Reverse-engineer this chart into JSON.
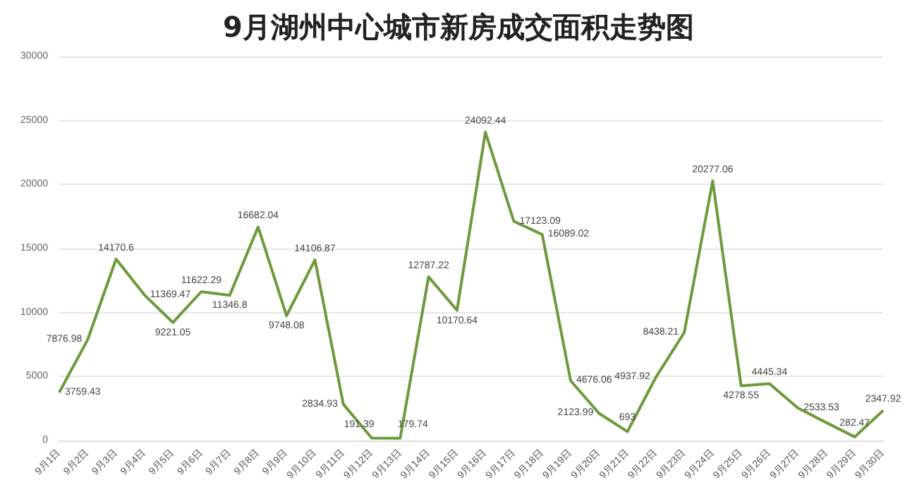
{
  "chart_data": {
    "type": "line",
    "title": "9月湖州中心城市新房成交面积走势图",
    "categories": [
      "9月1日",
      "9月2日",
      "9月3日",
      "9月4日",
      "9月5日",
      "9月6日",
      "9月7日",
      "9月8日",
      "9月9日",
      "9月10日",
      "9月11日",
      "9月12日",
      "9月13日",
      "9月14日",
      "9月15日",
      "9月16日",
      "9月17日",
      "9月18日",
      "9月19日",
      "9月20日",
      "9月21日",
      "9月22日",
      "9月23日",
      "9月24日",
      "9月25日",
      "9月26日",
      "9月27日",
      "9月28日",
      "9月29日",
      "9月30日"
    ],
    "series": [
      {
        "color": "#6e9a3c",
        "values": [
          3759.43,
          7876.98,
          14170.6,
          11369.47,
          9221.05,
          11622.29,
          11346.8,
          16682.04,
          9748.08,
          14106.87,
          2834.93,
          191.39,
          179.74,
          12787.22,
          10170.64,
          24092.44,
          17123.09,
          16089.02,
          4676.06,
          2123.99,
          693,
          4937.92,
          8438.21,
          20277.06,
          4278.55,
          4445.34,
          2533.53,
          1400,
          282.47,
          2347.92
        ],
        "value_labels": [
          "3759.43",
          "7876.98",
          "14170.6",
          "11369.47",
          "9221.05",
          "11622.29",
          "11346.8",
          "16682.04",
          "9748.08",
          "14106.87",
          "2834.93",
          "191.39",
          "179.74",
          "12787.22",
          "10170.64",
          "24092.44",
          "17123.09",
          "16089.02",
          "4676.06",
          "2123.99",
          "693",
          "4937.92",
          "8438.21",
          "20277.06",
          "4278.55",
          "4445.34",
          "2533.53",
          null,
          "282.47",
          "2347.92"
        ]
      }
    ],
    "ylim": [
      0,
      30000
    ],
    "yticks": [
      0,
      5000,
      10000,
      15000,
      20000,
      25000,
      30000
    ],
    "grid": "y",
    "marker": "none",
    "line_style": "solid"
  }
}
